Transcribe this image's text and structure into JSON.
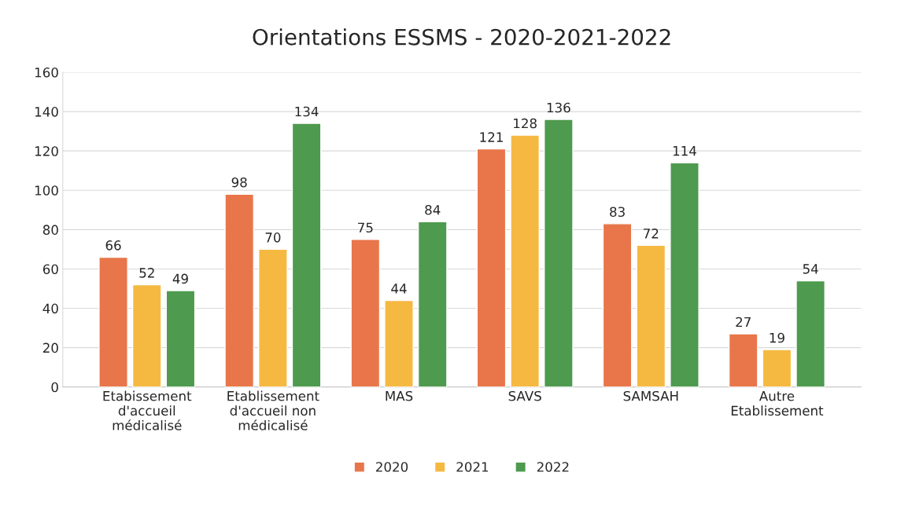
{
  "chart_data": {
    "type": "bar",
    "title": "Orientations ESSMS - 2020-2021-2022",
    "categories": [
      "Etabissement\nd'accueil\nmédicalisé",
      "Etablissement\nd'accueil non\nmédicalisé",
      "MAS",
      "SAVS",
      "SAMSAH",
      "Autre\nEtablissement"
    ],
    "series": [
      {
        "name": "2020",
        "color": "#e8764a",
        "values": [
          66,
          98,
          75,
          121,
          83,
          27
        ]
      },
      {
        "name": "2021",
        "color": "#f5b942",
        "values": [
          52,
          70,
          44,
          128,
          72,
          19
        ]
      },
      {
        "name": "2022",
        "color": "#4e9a4e",
        "values": [
          49,
          134,
          84,
          136,
          114,
          54
        ]
      }
    ],
    "ylim": [
      0,
      160
    ],
    "yticks": [
      0,
      20,
      40,
      60,
      80,
      100,
      120,
      140,
      160
    ],
    "grid": "y",
    "legend": "bottom",
    "data_labels": true
  }
}
